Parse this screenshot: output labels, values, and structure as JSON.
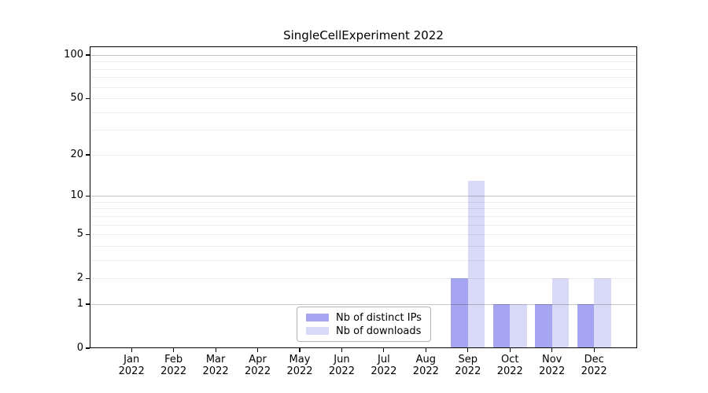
{
  "chart_data": {
    "type": "bar",
    "title": "SingleCellExperiment 2022",
    "categories": [
      "Jan",
      "Feb",
      "Mar",
      "Apr",
      "May",
      "Jun",
      "Jul",
      "Aug",
      "Sep",
      "Oct",
      "Nov",
      "Dec"
    ],
    "x_tick_year": "2022",
    "series": [
      {
        "name": "Nb of distinct IPs",
        "color": "#a5a5f2",
        "values": [
          0,
          0,
          0,
          0,
          0,
          0,
          0,
          0,
          2,
          1,
          1,
          1
        ]
      },
      {
        "name": "Nb of downloads",
        "color": "#d9d9f8",
        "values": [
          0,
          0,
          0,
          0,
          0,
          0,
          0,
          0,
          13,
          1,
          2,
          2
        ]
      }
    ],
    "yscale": "log1p",
    "ylim": [
      0,
      115
    ],
    "yticks": [
      0,
      1,
      2,
      5,
      10,
      20,
      50,
      100
    ],
    "major_gridlines": [
      1,
      10,
      100
    ],
    "minor_gridlines": [
      2,
      3,
      4,
      5,
      6,
      7,
      8,
      9,
      20,
      30,
      40,
      50,
      60,
      70,
      80,
      90
    ],
    "grid_on": true,
    "grid_above_bars": true,
    "legend_position": "bottom-center",
    "xlabel": "",
    "ylabel": ""
  },
  "colors": {
    "background": "#ffffff",
    "axis": "#000000",
    "major_grid": "rgba(0,0,0,0.22)",
    "minor_grid": "rgba(0,0,0,0.065)"
  }
}
